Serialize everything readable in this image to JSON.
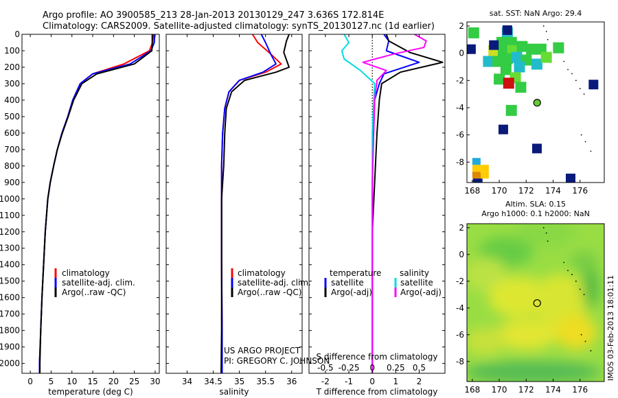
{
  "header": {
    "line1": "Argo profile: AO 3900585_213 28-Jan-2013 20130129_247 3.636S 172.814E",
    "line2": "Climatology: CARS2009. Satellite-adjusted climatology: synTS_20130127.nc (1d earlier)"
  },
  "project_line1": "US ARGO PROJECT",
  "project_line2": "PI: GREGORY C. JOHNSON",
  "timestamp": "IMOS 03-Feb-2013 18:01:11",
  "colors": {
    "climatology": "#ff0000",
    "satellite": "#0000ff",
    "argo": "#000000",
    "sal_satellite": "#00dddd",
    "sal_argo": "#ff00ff",
    "argo_marker": "#66cc33",
    "sst_cell_dark": "#0a1a7a"
  },
  "chart_data": [
    {
      "id": "temperature",
      "type": "line",
      "xlabel": "temperature (deg C)",
      "ylabel": "",
      "xlim": [
        -2,
        31
      ],
      "ylim": [
        2060,
        0
      ],
      "xticks": [
        0,
        5,
        10,
        15,
        20,
        25,
        30
      ],
      "yticks": [
        0,
        100,
        200,
        300,
        400,
        500,
        600,
        700,
        800,
        900,
        1000,
        1100,
        1200,
        1300,
        1400,
        1500,
        1600,
        1700,
        1800,
        1900,
        2000
      ],
      "legend": [
        "climatology",
        "satellite-adj. clim.",
        "Argo(..raw -QC)"
      ],
      "series": [
        {
          "name": "climatology",
          "color": "#ff0000",
          "x": [
            29.6,
            29.4,
            28.6,
            22.5,
            15.0,
            12.0,
            10.2,
            9.0,
            7.6,
            6.5,
            5.6,
            4.8,
            4.2,
            3.6,
            3.2,
            2.8,
            2.5,
            2.2,
            2.2
          ],
          "y": [
            0,
            50,
            100,
            180,
            240,
            300,
            400,
            500,
            600,
            700,
            800,
            900,
            1000,
            1200,
            1400,
            1600,
            1800,
            2000,
            2060
          ]
        },
        {
          "name": "satellite-adj. clim.",
          "color": "#0000ff",
          "x": [
            29.9,
            29.8,
            29.0,
            24.0,
            15.0,
            12.0,
            10.2,
            9.0,
            7.6,
            6.5,
            5.6,
            4.8,
            4.2,
            3.6,
            3.2,
            2.8,
            2.5,
            2.2,
            2.2
          ],
          "y": [
            0,
            50,
            100,
            180,
            240,
            300,
            400,
            500,
            600,
            700,
            800,
            900,
            1000,
            1200,
            1400,
            1600,
            1800,
            2000,
            2060
          ]
        },
        {
          "name": "Argo(..raw -QC)",
          "color": "#000000",
          "x": [
            29.3,
            29.3,
            29.2,
            25.0,
            16.0,
            12.4,
            10.4,
            9.1,
            7.7,
            6.5,
            5.6,
            4.8,
            4.2,
            3.6,
            3.2,
            2.8,
            2.5,
            2.3,
            2.3
          ],
          "y": [
            0,
            50,
            100,
            180,
            240,
            300,
            400,
            500,
            600,
            700,
            800,
            900,
            1000,
            1200,
            1400,
            1600,
            1800,
            2000,
            2060
          ]
        }
      ]
    },
    {
      "id": "salinity",
      "type": "line",
      "xlabel": "salinity",
      "ylabel": "",
      "xlim": [
        33.6,
        36.2
      ],
      "ylim": [
        2060,
        0
      ],
      "xticks": [
        34,
        34.5,
        35,
        35.5,
        36
      ],
      "yticks": [
        0,
        100,
        200,
        300,
        400,
        500,
        600,
        700,
        800,
        900,
        1000,
        1100,
        1200,
        1300,
        1400,
        1500,
        1600,
        1700,
        1800,
        1900,
        2000
      ],
      "legend": [
        "climatology",
        "satellite-adj. clim.",
        "Argo(..raw -QC)"
      ],
      "series": [
        {
          "name": "climatology",
          "color": "#ff0000",
          "x": [
            35.25,
            35.35,
            35.6,
            35.8,
            35.5,
            35.0,
            34.8,
            34.72,
            34.68,
            34.66,
            34.66,
            34.66,
            34.67,
            34.67
          ],
          "y": [
            0,
            50,
            120,
            180,
            230,
            280,
            350,
            450,
            600,
            800,
            1000,
            1400,
            1800,
            2060
          ]
        },
        {
          "name": "satellite-adj. clim.",
          "color": "#0000ff",
          "x": [
            35.42,
            35.5,
            35.6,
            35.7,
            35.45,
            35.0,
            34.8,
            34.72,
            34.68,
            34.66,
            34.66,
            34.66,
            34.67,
            34.67
          ],
          "y": [
            0,
            50,
            120,
            180,
            230,
            280,
            350,
            450,
            600,
            800,
            1000,
            1400,
            1800,
            2060
          ]
        },
        {
          "name": "Argo(..raw -QC)",
          "color": "#000000",
          "x": [
            35.95,
            35.9,
            35.85,
            35.95,
            35.7,
            35.1,
            34.85,
            34.75,
            34.72,
            34.7,
            34.66,
            34.66,
            34.66,
            34.65
          ],
          "y": [
            0,
            40,
            110,
            200,
            230,
            280,
            350,
            450,
            600,
            800,
            1000,
            1400,
            1800,
            2060
          ]
        }
      ]
    },
    {
      "id": "difference",
      "type": "line",
      "xlabel": "T difference from climatology",
      "xlabel_top": "S difference from climatology",
      "xlim": [
        -2.7,
        3.1
      ],
      "ylim": [
        2060,
        0
      ],
      "xticks": [
        -2,
        -1,
        0,
        1,
        2
      ],
      "xticks_s": [
        "-0.5",
        "-0.25",
        "0",
        "0.25",
        "0.5"
      ],
      "xticks_s_pos": [
        -2,
        -1,
        0,
        1,
        2
      ],
      "yticks": [
        0,
        100,
        200,
        300,
        400,
        500,
        600,
        700,
        800,
        900,
        1000,
        1100,
        1200,
        1300,
        1400,
        1500,
        1600,
        1700,
        1800,
        1900,
        2000
      ],
      "legend_titles": [
        "temperature",
        "salinity"
      ],
      "legend": [
        "satellite",
        "Argo(-adj)",
        "satellite",
        "Argo(-adj)"
      ],
      "series": [
        {
          "name": "T satellite",
          "color": "#0000ff",
          "x": [
            0.5,
            0.7,
            0.6,
            2.0,
            0.5,
            0.3,
            0.1,
            0.05,
            0,
            0,
            0,
            0
          ],
          "y": [
            0,
            40,
            100,
            170,
            240,
            300,
            400,
            600,
            900,
            1200,
            1600,
            2060
          ]
        },
        {
          "name": "T Argo(-adj)",
          "color": "#000000",
          "x": [
            0.6,
            0.7,
            1.6,
            3.0,
            1.2,
            0.4,
            0.3,
            0.2,
            0.1,
            0,
            0,
            0
          ],
          "y": [
            0,
            40,
            110,
            170,
            230,
            300,
            400,
            600,
            900,
            1200,
            1600,
            2060
          ]
        },
        {
          "name": "S satellite",
          "color": "#00dddd",
          "x": [
            -1.2,
            -1.0,
            -1.3,
            -1.2,
            -0.5,
            0.1,
            0,
            0,
            0
          ],
          "y": [
            0,
            50,
            100,
            150,
            220,
            300,
            600,
            1200,
            2060
          ]
        },
        {
          "name": "S Argo(-adj)",
          "color": "#ff00ff",
          "x": [
            1.8,
            2.3,
            2.2,
            0.9,
            -0.4,
            0.6,
            0.2,
            0.1,
            0,
            0
          ],
          "y": [
            0,
            40,
            80,
            120,
            170,
            220,
            280,
            400,
            900,
            2060
          ]
        }
      ]
    },
    {
      "id": "sst_map",
      "type": "heatmap",
      "title": "sat. SST: NaN Argo: 29.4",
      "xlim": [
        167.6,
        177.8
      ],
      "ylim": [
        -9.5,
        2.3
      ],
      "xticks": [
        168,
        170,
        172,
        174,
        176
      ],
      "yticks": [
        2,
        0,
        -2,
        -4,
        -6,
        -8
      ],
      "argo_position": [
        172.814,
        -3.636
      ],
      "cells": [
        {
          "lon": 170.6,
          "lat": 1.5,
          "v": "c"
        },
        {
          "lon": 170.2,
          "lat": 0.8,
          "v": "g"
        },
        {
          "lon": 170.9,
          "lat": 0.8,
          "v": "g"
        },
        {
          "lon": 169.6,
          "lat": 0.2,
          "v": "y"
        },
        {
          "lon": 170.3,
          "lat": 0.2,
          "v": "g"
        },
        {
          "lon": 171.0,
          "lat": 0.2,
          "v": "l"
        },
        {
          "lon": 171.7,
          "lat": 0.5,
          "v": "g"
        },
        {
          "lon": 172.4,
          "lat": 0.3,
          "v": "g"
        },
        {
          "lon": 173.1,
          "lat": 0.3,
          "v": "g"
        },
        {
          "lon": 169.2,
          "lat": -0.6,
          "v": "c"
        },
        {
          "lon": 169.9,
          "lat": -0.6,
          "v": "g"
        },
        {
          "lon": 170.6,
          "lat": -0.4,
          "v": "g"
        },
        {
          "lon": 171.3,
          "lat": -0.3,
          "v": "c"
        },
        {
          "lon": 172.0,
          "lat": -0.5,
          "v": "g"
        },
        {
          "lon": 172.8,
          "lat": -0.8,
          "v": "c"
        },
        {
          "lon": 173.5,
          "lat": -0.3,
          "v": "l"
        },
        {
          "lon": 171.5,
          "lat": -1.0,
          "v": "c"
        },
        {
          "lon": 170.5,
          "lat": -1.2,
          "v": "g"
        },
        {
          "lon": 170.0,
          "lat": -1.9,
          "v": "g"
        },
        {
          "lon": 171.2,
          "lat": -1.8,
          "v": "l"
        },
        {
          "lon": 170.7,
          "lat": -2.2,
          "v": "r"
        },
        {
          "lon": 171.6,
          "lat": -2.5,
          "v": "g"
        },
        {
          "lon": 170.9,
          "lat": -4.2,
          "v": "g"
        },
        {
          "lon": 168.1,
          "lat": 1.5,
          "v": "g"
        },
        {
          "lon": 174.4,
          "lat": 0.4,
          "v": "g"
        }
      ],
      "dark_cells": [
        {
          "lon": 170.6,
          "lat": 1.7
        },
        {
          "lon": 167.9,
          "lat": 0.3
        },
        {
          "lon": 169.6,
          "lat": 0.6
        },
        {
          "lon": 177.0,
          "lat": -2.3
        },
        {
          "lon": 170.3,
          "lat": -5.6
        },
        {
          "lon": 172.8,
          "lat": -7.0
        },
        {
          "lon": 175.3,
          "lat": -9.2
        },
        {
          "lon": 168.4,
          "lat": -9.2
        }
      ]
    },
    {
      "id": "sla_map",
      "type": "heatmap",
      "title_line1": "Altim. SLA: 0.15",
      "title_line2": "Argo h1000: 0.1 h2000: NaN",
      "xlim": [
        167.6,
        177.8
      ],
      "ylim": [
        -9.5,
        2.3
      ],
      "xticks": [
        168,
        170,
        172,
        174,
        176
      ],
      "yticks": [
        2,
        0,
        -2,
        -4,
        -6,
        -8
      ],
      "argo_position": [
        172.814,
        -3.636
      ]
    }
  ]
}
